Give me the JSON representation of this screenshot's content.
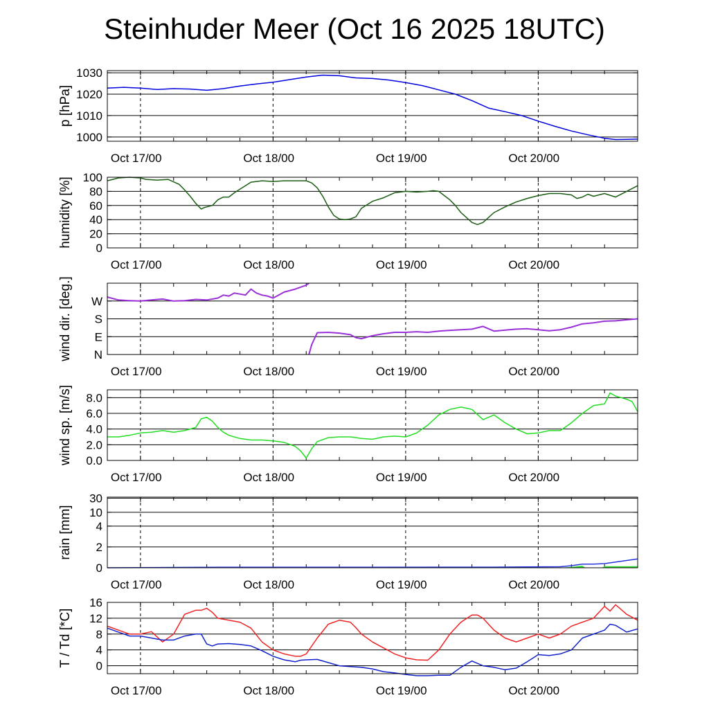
{
  "title": "Steinhuder Meer (Oct 16 2025 18UTC)",
  "colors": {
    "pressure": "#0000dd",
    "humidity": "#1a5c12",
    "wind_dir": "#9a30d8",
    "wind_speed": "#22dd22",
    "rain": "#2233dd",
    "rain_fill": "#33dd33",
    "temperature": "#ee2222",
    "dewpoint": "#1122cc"
  },
  "chart_data": [
    {
      "type": "line",
      "ylabel": "p [hPa]",
      "xlim": [
        0,
        96
      ],
      "ylim": [
        998,
        1031
      ],
      "y_ticks": [
        1000,
        1010,
        1020,
        1030
      ],
      "y_tick_labels": [
        "1000",
        "1010",
        "1020",
        "1030"
      ],
      "x_ticks": [
        6,
        30,
        54,
        78
      ],
      "x_tick_labels": [
        "Oct 17/00",
        "Oct 18/00",
        "Oct 19/00",
        "Oct 20/00"
      ],
      "series": [
        {
          "color_key": "pressure",
          "x": [
            0,
            3,
            6,
            9,
            12,
            15,
            18,
            21,
            24,
            27,
            30,
            33,
            36,
            39,
            42,
            45,
            48,
            51,
            54,
            57,
            60,
            63,
            66,
            69,
            72,
            75,
            78,
            81,
            84,
            87,
            90,
            92,
            94,
            96
          ],
          "y": [
            1022.8,
            1023.2,
            1022.8,
            1022.2,
            1022.6,
            1022.4,
            1021.8,
            1022.6,
            1023.8,
            1024.8,
            1025.6,
            1026.8,
            1028.0,
            1028.9,
            1028.6,
            1027.6,
            1027.3,
            1026.6,
            1025.4,
            1024.0,
            1022.0,
            1020.0,
            1017.0,
            1013.5,
            1011.8,
            1010.0,
            1007.4,
            1005.0,
            1002.8,
            1001.0,
            999.4,
            998.8,
            998.9,
            999.0
          ]
        }
      ]
    },
    {
      "type": "line",
      "ylabel": "humidity [%]",
      "xlim": [
        0,
        96
      ],
      "ylim": [
        0,
        100
      ],
      "y_ticks": [
        0,
        20,
        40,
        60,
        80,
        100
      ],
      "y_tick_labels": [
        "0",
        "20",
        "40",
        "60",
        "80",
        "100"
      ],
      "x_ticks": [
        6,
        30,
        54,
        78
      ],
      "x_tick_labels": [
        "Oct 17/00",
        "Oct 18/00",
        "Oct 19/00",
        "Oct 20/00"
      ],
      "series": [
        {
          "color_key": "humidity",
          "x": [
            0,
            2,
            4,
            6,
            7,
            9,
            11,
            13,
            14,
            15,
            16,
            17,
            17.5,
            18,
            19,
            20,
            21,
            22,
            22.5,
            23,
            24,
            26,
            28,
            30,
            32,
            34,
            36,
            37,
            38,
            39,
            40,
            41,
            42,
            43,
            44,
            45,
            46,
            48,
            50,
            52,
            54,
            56,
            58,
            59,
            60,
            61,
            62,
            63,
            64,
            65,
            66,
            67,
            68,
            70,
            72,
            74,
            76,
            78,
            80,
            82,
            84,
            85,
            86,
            87,
            88,
            90,
            92,
            94,
            96
          ],
          "y": [
            95,
            99,
            100,
            99,
            97,
            96,
            97,
            90,
            82,
            73,
            63,
            55,
            57,
            58,
            60,
            68,
            72,
            72,
            75,
            78,
            83,
            93,
            95,
            94,
            95,
            95,
            95,
            92,
            85,
            73,
            58,
            46,
            41,
            40,
            41,
            44,
            56,
            66,
            71,
            78,
            80,
            79,
            80,
            81,
            80,
            74,
            68,
            60,
            50,
            43,
            36,
            33,
            36,
            50,
            58,
            65,
            70,
            74,
            77,
            77,
            75,
            70,
            72,
            76,
            73,
            77,
            72,
            80,
            88
          ]
        }
      ]
    },
    {
      "type": "line",
      "ylabel": "wind dir. [deg.]",
      "xlim": [
        0,
        96
      ],
      "ylim": [
        0,
        360
      ],
      "y_ticks": [
        0,
        90,
        180,
        270
      ],
      "y_tick_labels": [
        "N",
        "E",
        "S",
        "W"
      ],
      "x_ticks": [
        6,
        30,
        54,
        78
      ],
      "x_tick_labels": [
        "Oct 17/00",
        "Oct 18/00",
        "Oct 19/00",
        "Oct 20/00"
      ],
      "series": [
        {
          "color_key": "wind_dir",
          "x": [
            0,
            2,
            4,
            6,
            8,
            10,
            12,
            14,
            16,
            18,
            20,
            21,
            22,
            23,
            24,
            25,
            26,
            27,
            28,
            29,
            30,
            31,
            32,
            34,
            35,
            36,
            36.5
          ],
          "y": [
            290,
            275,
            272,
            270,
            275,
            280,
            270,
            272,
            278,
            275,
            285,
            300,
            295,
            310,
            305,
            300,
            330,
            310,
            300,
            295,
            285,
            300,
            315,
            330,
            340,
            350,
            360
          ]
        },
        {
          "color_key": "wind_dir",
          "x": [
            36.5,
            37,
            38,
            40,
            42,
            44,
            45,
            46,
            48,
            50,
            52,
            54,
            56,
            58,
            60,
            62,
            64,
            66,
            68,
            70,
            72,
            74,
            76,
            78,
            80,
            82,
            84,
            86,
            88,
            90,
            92,
            94,
            96
          ],
          "y": [
            0,
            50,
            110,
            112,
            108,
            100,
            85,
            80,
            95,
            105,
            112,
            112,
            115,
            112,
            118,
            122,
            125,
            128,
            142,
            118,
            123,
            128,
            130,
            125,
            120,
            125,
            138,
            155,
            160,
            168,
            170,
            175,
            180
          ]
        }
      ]
    },
    {
      "type": "line",
      "ylabel": "wind sp. [m/s]",
      "xlim": [
        0,
        96
      ],
      "ylim": [
        0,
        9
      ],
      "y_ticks": [
        0,
        2,
        4,
        6,
        8
      ],
      "y_tick_labels": [
        "0.0",
        "2.0",
        "4.0",
        "6.0",
        "8.0"
      ],
      "x_ticks": [
        6,
        30,
        54,
        78
      ],
      "x_tick_labels": [
        "Oct 17/00",
        "Oct 18/00",
        "Oct 19/00",
        "Oct 20/00"
      ],
      "series": [
        {
          "color_key": "wind_speed",
          "x": [
            0,
            2,
            4,
            6,
            8,
            10,
            12,
            14,
            16,
            17,
            18,
            19,
            20,
            21,
            22,
            24,
            26,
            28,
            30,
            32,
            34,
            35,
            36,
            37,
            38,
            40,
            42,
            44,
            46,
            48,
            50,
            52,
            54,
            56,
            58,
            60,
            62,
            64,
            66,
            68,
            70,
            72,
            74,
            76,
            78,
            80,
            82,
            84,
            86,
            88,
            90,
            91,
            92,
            93,
            94,
            95,
            96
          ],
          "y": [
            3.0,
            3.0,
            3.2,
            3.5,
            3.6,
            3.8,
            3.6,
            3.8,
            4.2,
            5.3,
            5.5,
            5.0,
            4.2,
            3.6,
            3.2,
            2.8,
            2.6,
            2.6,
            2.5,
            2.3,
            1.8,
            1.2,
            0.3,
            1.5,
            2.4,
            2.9,
            3.0,
            3.0,
            2.8,
            2.7,
            3.0,
            3.1,
            3.0,
            3.5,
            4.5,
            5.8,
            6.5,
            6.8,
            6.5,
            5.2,
            5.8,
            4.8,
            4.0,
            3.4,
            3.5,
            3.8,
            3.8,
            4.8,
            6.0,
            7.0,
            7.2,
            8.6,
            8.2,
            8.0,
            7.8,
            7.5,
            6.2
          ]
        }
      ]
    },
    {
      "type": "area",
      "ylabel": "rain [mm]",
      "xlim": [
        0,
        96
      ],
      "y_ticks": [
        0,
        2,
        4,
        10,
        30
      ],
      "y_tick_labels": [
        "0",
        "2",
        "4",
        "10",
        "30"
      ],
      "x_ticks": [
        6,
        30,
        54,
        78
      ],
      "x_tick_labels": [
        "Oct 17/00",
        "Oct 18/00",
        "Oct 19/00",
        "Oct 20/00"
      ],
      "series": [
        {
          "color_key": "rain",
          "x": [
            0,
            20,
            30,
            50,
            70,
            82,
            84,
            86,
            88,
            90,
            92,
            94,
            96
          ],
          "y": [
            0.0,
            0.05,
            0.05,
            0.05,
            0.06,
            0.1,
            0.2,
            0.35,
            0.35,
            0.4,
            0.55,
            0.7,
            0.85
          ]
        },
        {
          "color_key": "rain_fill",
          "x": [
            0,
            82,
            84,
            86,
            86.5,
            87,
            88,
            89.5,
            90,
            96
          ],
          "y": [
            0,
            0,
            0.08,
            0.2,
            0,
            0,
            0,
            0,
            0.15,
            0.15
          ]
        }
      ]
    },
    {
      "type": "line",
      "ylabel": "T / Td [*C]",
      "xlim": [
        0,
        96
      ],
      "ylim": [
        -2,
        16
      ],
      "y_ticks": [
        0,
        4,
        8,
        12,
        16
      ],
      "y_tick_labels": [
        "0",
        "4",
        "8",
        "12",
        "16"
      ],
      "x_ticks": [
        6,
        30,
        54,
        78
      ],
      "x_tick_labels": [
        "Oct 17/00",
        "Oct 18/00",
        "Oct 19/00",
        "Oct 20/00"
      ],
      "series": [
        {
          "color_key": "temperature",
          "x": [
            0,
            2,
            4,
            6,
            8,
            10,
            12,
            14,
            16,
            17,
            18,
            19,
            20,
            22,
            24,
            26,
            28,
            30,
            32,
            34,
            35,
            36,
            38,
            40,
            42,
            44,
            45,
            46,
            48,
            50,
            52,
            54,
            56,
            58,
            60,
            62,
            64,
            66,
            67,
            68,
            70,
            72,
            74,
            76,
            78,
            80,
            82,
            84,
            86,
            88,
            90,
            91,
            92,
            94,
            96
          ],
          "y": [
            10.0,
            9.0,
            8.0,
            8.0,
            8.6,
            6.0,
            8.0,
            13.0,
            14.0,
            14.0,
            14.5,
            13.5,
            12.0,
            11.5,
            11.0,
            9.5,
            6.0,
            4.0,
            3.0,
            2.4,
            2.4,
            3.0,
            7.0,
            10.5,
            11.5,
            11.0,
            9.6,
            8.0,
            6.0,
            4.5,
            3.0,
            2.0,
            1.5,
            1.4,
            4.0,
            8.0,
            11.0,
            12.8,
            12.8,
            12.0,
            9.0,
            7.0,
            6.0,
            7.0,
            8.0,
            7.0,
            8.0,
            10.0,
            11.0,
            12.0,
            15.0,
            13.8,
            15.4,
            13.0,
            11.5
          ]
        },
        {
          "color_key": "dewpoint",
          "x": [
            0,
            2,
            4,
            6,
            8,
            10,
            12,
            14,
            16,
            17,
            18,
            19,
            20,
            22,
            24,
            26,
            28,
            30,
            32,
            34,
            35,
            36,
            38,
            40,
            42,
            44,
            46,
            48,
            50,
            52,
            54,
            56,
            58,
            60,
            62,
            64,
            66,
            68,
            70,
            72,
            74,
            76,
            78,
            80,
            82,
            84,
            86,
            88,
            90,
            91,
            92,
            94,
            96
          ],
          "y": [
            9.5,
            8.5,
            7.5,
            7.5,
            7.0,
            6.5,
            6.5,
            7.5,
            8.0,
            8.0,
            5.5,
            5.0,
            5.5,
            5.6,
            5.4,
            5.0,
            3.8,
            2.4,
            1.5,
            1.0,
            1.4,
            1.5,
            1.6,
            0.8,
            0.0,
            -0.2,
            -0.4,
            -0.8,
            -1.5,
            -1.8,
            -2.2,
            -2.5,
            -2.5,
            -2.4,
            -2.4,
            -0.4,
            1.2,
            0.0,
            -0.4,
            -1.0,
            -0.6,
            1.0,
            2.8,
            2.6,
            3.0,
            4.0,
            7.0,
            8.0,
            9.0,
            10.5,
            10.2,
            8.5,
            9.3
          ]
        }
      ]
    }
  ]
}
